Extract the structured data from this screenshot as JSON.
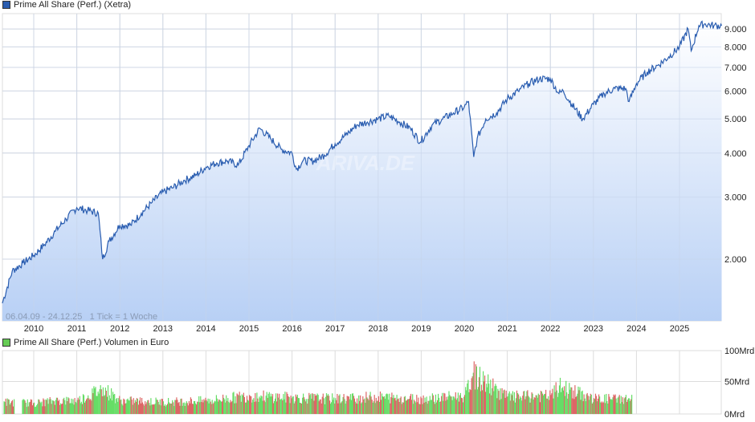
{
  "main_legend": {
    "label": "Prime All Share (Perf.) (Xetra)",
    "color": "#2a5db0"
  },
  "volume_legend": {
    "label": "Prime All Share (Perf.) Volumen in Euro",
    "color": "#66cc55"
  },
  "info_text": "06.04.09 - 24.12.25   1 Tick = 1 Woche",
  "watermark": "ARIVA.DE",
  "colors": {
    "line": "#2a5db0",
    "fill_top": "#ffffff",
    "fill_bottom": "#b8d0f5",
    "grid": "#dcdcdc",
    "vol_up": "#66dd66",
    "vol_down": "#dd6666"
  },
  "chart_data": [
    {
      "type": "area",
      "title": "Prime All Share (Perf.) (Xetra)",
      "xlabel": "",
      "ylabel": "",
      "yscale": "log",
      "ylim": [
        1336,
        9600
      ],
      "grid": true,
      "legend_position": "top-left",
      "x_tick_labels": [
        "2010",
        "2011",
        "2012",
        "2013",
        "2014",
        "2015",
        "2016",
        "2017",
        "2018",
        "2019",
        "2020",
        "2021",
        "2022",
        "2023",
        "2024",
        "2025"
      ],
      "y_tick_labels": [
        "9.000",
        "8.000",
        "7.000",
        "6.000",
        "5.000",
        "4.000",
        "3.000",
        "2.000"
      ],
      "y_tick_values": [
        9000,
        8000,
        7000,
        6000,
        5000,
        4000,
        3000,
        2000
      ],
      "x": [
        2009.27,
        2009.5,
        2009.75,
        2010.0,
        2010.25,
        2010.5,
        2010.75,
        2011.0,
        2011.25,
        2011.5,
        2011.6,
        2011.75,
        2012.0,
        2012.25,
        2012.5,
        2012.75,
        2013.0,
        2013.25,
        2013.5,
        2013.75,
        2014.0,
        2014.25,
        2014.5,
        2014.75,
        2015.0,
        2015.25,
        2015.5,
        2015.75,
        2016.0,
        2016.1,
        2016.25,
        2016.5,
        2016.75,
        2017.0,
        2017.25,
        2017.5,
        2017.75,
        2018.0,
        2018.25,
        2018.5,
        2018.75,
        2018.98,
        2019.25,
        2019.5,
        2019.75,
        2020.0,
        2020.1,
        2020.22,
        2020.3,
        2020.5,
        2020.75,
        2021.0,
        2021.25,
        2021.5,
        2021.75,
        2022.0,
        2022.2,
        2022.3,
        2022.5,
        2022.75,
        2023.0,
        2023.25,
        2023.5,
        2023.75,
        2023.83,
        2024.0,
        2024.25,
        2024.5,
        2024.75,
        2025.0,
        2025.2,
        2025.27,
        2025.45,
        2025.6,
        2025.8,
        2025.98
      ],
      "values": [
        1500,
        1850,
        1950,
        2050,
        2200,
        2400,
        2600,
        2800,
        2750,
        2700,
        2000,
        2250,
        2500,
        2500,
        2700,
        2900,
        3100,
        3200,
        3350,
        3450,
        3650,
        3750,
        3800,
        3700,
        4200,
        4700,
        4400,
        4100,
        4000,
        3600,
        3800,
        3800,
        3950,
        4250,
        4500,
        4800,
        4900,
        5000,
        5100,
        4900,
        4700,
        4300,
        4800,
        5000,
        5200,
        5400,
        5600,
        3900,
        4400,
        5000,
        5200,
        5700,
        6000,
        6300,
        6500,
        6500,
        5900,
        6000,
        5500,
        5000,
        5500,
        5900,
        6100,
        6100,
        5600,
        6300,
        6800,
        7100,
        7500,
        8000,
        9000,
        7800,
        9200,
        9300,
        9200,
        9200
      ]
    },
    {
      "type": "bar",
      "title": "Prime All Share (Perf.) Volumen in Euro",
      "ylabel": "",
      "ylim": [
        0,
        100
      ],
      "unit": "Mrd",
      "y_tick_labels": [
        "100Mrd",
        "50Mrd",
        "0Mrd"
      ],
      "grid": true,
      "note": "weekly volume bars, green = up week, red = down week; typical 15-30 Mrd, peaks ~35-45 Mrd around 2011/2012, spike ~65 Mrd in early 2020, ~45 Mrd in 2022; data ends ~2024.0",
      "x": [
        2009.3,
        2010.0,
        2010.5,
        2011.0,
        2011.6,
        2012.0,
        2013.0,
        2014.0,
        2015.0,
        2016.0,
        2017.0,
        2018.0,
        2019.0,
        2020.0,
        2020.2,
        2021.0,
        2022.0,
        2022.2,
        2023.0,
        2023.9
      ],
      "values": [
        20,
        18,
        22,
        22,
        42,
        22,
        20,
        22,
        30,
        27,
        25,
        28,
        25,
        30,
        65,
        28,
        30,
        45,
        25,
        25
      ]
    }
  ]
}
